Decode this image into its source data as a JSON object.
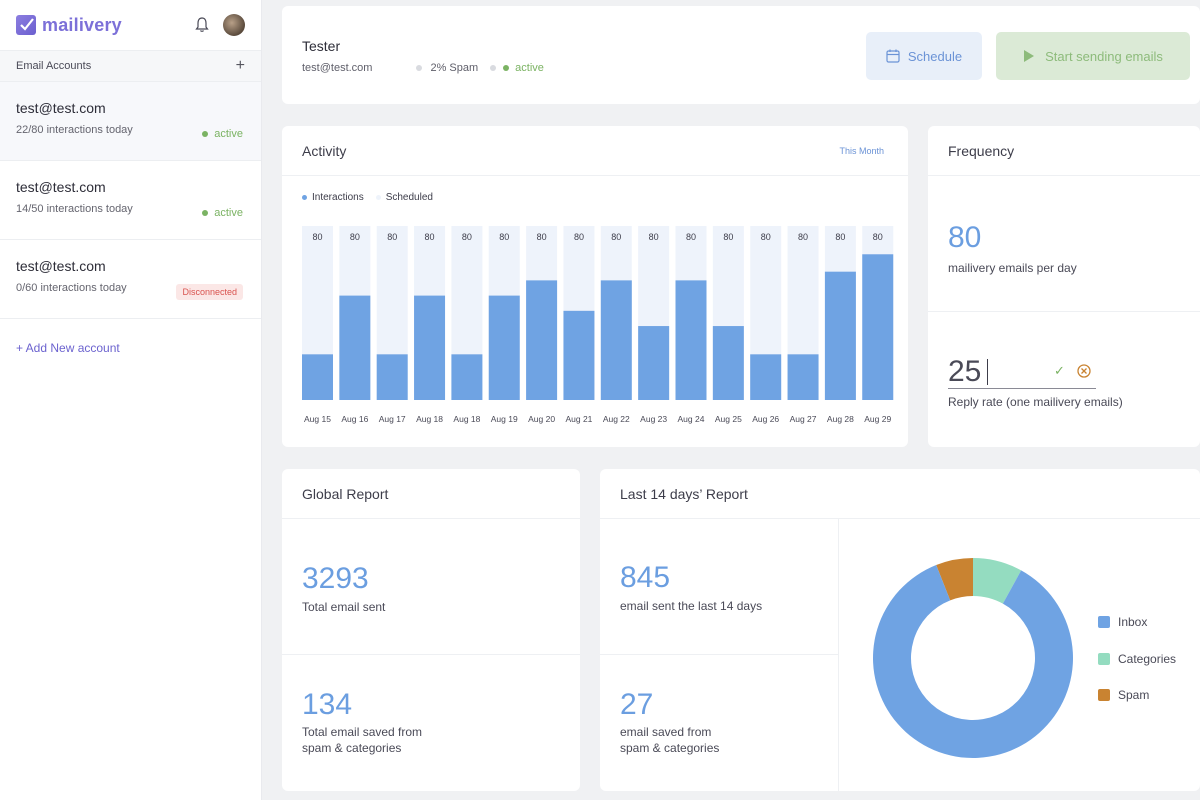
{
  "app": {
    "name": "mailivery"
  },
  "sidebar": {
    "section_title": "Email Accounts",
    "add_symbol": "+",
    "accounts": [
      {
        "email": "test@test.com",
        "interactions": "22/80 interactions today",
        "status": "active"
      },
      {
        "email": "test@test.com",
        "interactions": "14/50 interactions today",
        "status": "active"
      },
      {
        "email": "test@test.com",
        "interactions": "0/60 interactions today",
        "status": "Disconnected"
      }
    ],
    "add_account": "+ Add New account"
  },
  "header": {
    "name": "Tester",
    "email": "test@test.com",
    "spam": "2% Spam",
    "status": "active",
    "schedule_label": "Schedule",
    "start_label": "Start sending emails"
  },
  "activity": {
    "title": "Activity",
    "period": "This Month",
    "legend": [
      "Interactions",
      "Scheduled"
    ]
  },
  "frequency": {
    "title": "Frequency",
    "emails_per_day": "80",
    "emails_per_day_label": "mailivery emails per day",
    "reply_rate": "25",
    "reply_rate_label": "Reply rate (one mailivery emails)"
  },
  "global_report": {
    "title": "Global Report",
    "total_sent": "3293",
    "total_sent_label": "Total email sent",
    "saved": "134",
    "saved_label_1": "Total email saved from",
    "saved_label_2": "spam & categories"
  },
  "last14": {
    "title": "Last 14 days’ Report",
    "sent": "845",
    "sent_label": "email sent the last 14 days",
    "saved": "27",
    "saved_label_1": "email saved from",
    "saved_label_2": "spam & categories",
    "legend": [
      "Inbox",
      "Categories",
      "Spam"
    ]
  },
  "colors": {
    "accent": "#6b9ee0",
    "bar_fill": "#6fa3e3",
    "bar_track": "#eef3fb",
    "active": "#7bb363",
    "inbox": "#6fa3e3",
    "categories": "#94dcc0",
    "spam": "#c98331"
  },
  "chart_data": [
    {
      "type": "bar",
      "title": "Activity",
      "categories": [
        "Aug 15",
        "Aug 16",
        "Aug 17",
        "Aug 18",
        "Aug 18",
        "Aug 19",
        "Aug 20",
        "Aug 21",
        "Aug 22",
        "Aug 23",
        "Aug 24",
        "Aug 25",
        "Aug 26",
        "Aug 27",
        "Aug 28",
        "Aug 29"
      ],
      "series": [
        {
          "name": "Interactions",
          "values": [
            21,
            48,
            21,
            48,
            21,
            48,
            55,
            41,
            55,
            34,
            55,
            34,
            21,
            21,
            59,
            67
          ]
        },
        {
          "name": "Scheduled",
          "values": [
            80,
            80,
            80,
            80,
            80,
            80,
            80,
            80,
            80,
            80,
            80,
            80,
            80,
            80,
            80,
            80
          ]
        }
      ],
      "data_labels": [
        "80",
        "80",
        "80",
        "80",
        "80",
        "80",
        "80",
        "80",
        "80",
        "80",
        "80",
        "80",
        "80",
        "80",
        "80",
        "80"
      ],
      "ylim": [
        0,
        80
      ]
    },
    {
      "type": "pie",
      "categories": [
        "Inbox",
        "Categories",
        "Spam"
      ],
      "values": [
        86,
        8,
        6
      ]
    }
  ]
}
